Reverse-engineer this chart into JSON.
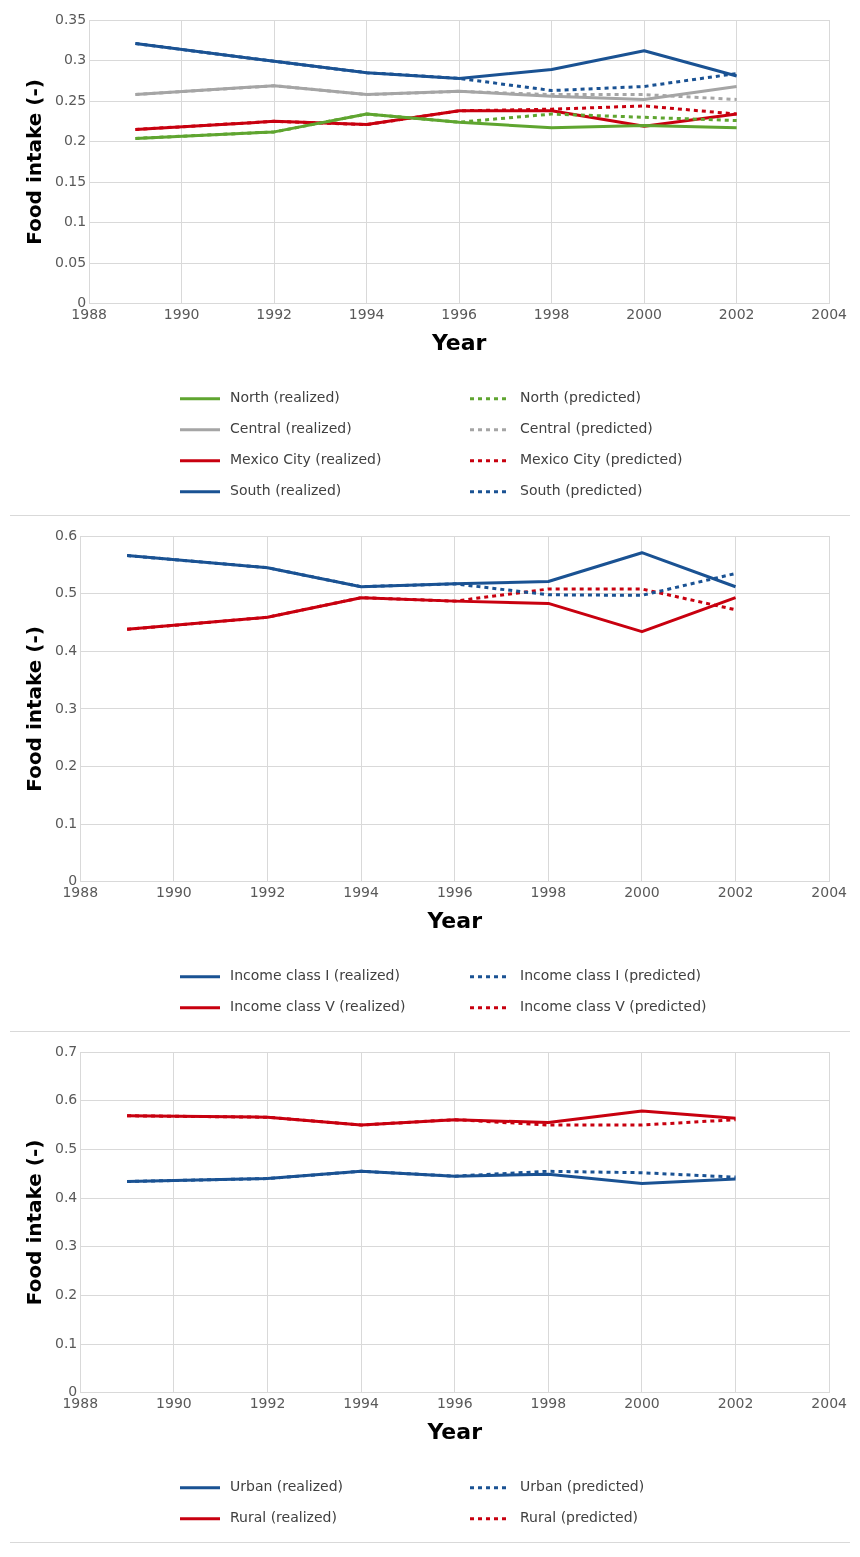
{
  "chart_data": [
    {
      "type": "line",
      "xlabel": "Year",
      "ylabel": "Food intake (-)",
      "x": [
        1989,
        1992,
        1994,
        1996,
        1998,
        2000,
        2002
      ],
      "xlim": [
        1988,
        2004
      ],
      "xticks": [
        1988,
        1990,
        1992,
        1994,
        1996,
        1998,
        2000,
        2002,
        2004
      ],
      "ylim": [
        0,
        0.35
      ],
      "yticks": [
        0,
        0.05,
        0.1,
        0.15,
        0.2,
        0.25,
        0.3,
        0.35
      ],
      "grid": true,
      "legend": "bottom",
      "marker": "none",
      "series": [
        {
          "name": "North (realized)",
          "color": "#5fa530",
          "line_style": "solid",
          "values": [
            0.204,
            0.212,
            0.234,
            0.224,
            0.217,
            0.22,
            0.217
          ]
        },
        {
          "name": "North (predicted)",
          "color": "#5fa530",
          "line_style": "dashed",
          "values": [
            0.204,
            0.212,
            0.234,
            0.224,
            0.234,
            0.23,
            0.226
          ]
        },
        {
          "name": "Central (realized)",
          "color": "#a5a5a5",
          "line_style": "solid",
          "values": [
            0.258,
            0.269,
            0.258,
            0.262,
            0.256,
            0.252,
            0.268
          ]
        },
        {
          "name": "Central (predicted)",
          "color": "#a5a5a5",
          "line_style": "dashed",
          "values": [
            0.258,
            0.269,
            0.258,
            0.262,
            0.258,
            0.258,
            0.252
          ]
        },
        {
          "name": "Mexico City (realized)",
          "color": "#c8000f",
          "line_style": "solid",
          "values": [
            0.215,
            0.225,
            0.221,
            0.238,
            0.238,
            0.219,
            0.234
          ]
        },
        {
          "name": "Mexico City (predicted)",
          "color": "#c8000f",
          "line_style": "dashed",
          "values": [
            0.215,
            0.225,
            0.221,
            0.238,
            0.24,
            0.244,
            0.234
          ]
        },
        {
          "name": "South (realized)",
          "color": "#1a5293",
          "line_style": "solid",
          "values": [
            0.321,
            0.299,
            0.285,
            0.278,
            0.289,
            0.312,
            0.281
          ]
        },
        {
          "name": "South (predicted)",
          "color": "#1a5293",
          "line_style": "dashed",
          "values": [
            0.321,
            0.299,
            0.285,
            0.278,
            0.263,
            0.268,
            0.284
          ]
        }
      ]
    },
    {
      "type": "line",
      "xlabel": "Year",
      "ylabel": "Food intake (-)",
      "x": [
        1989,
        1992,
        1994,
        1996,
        1998,
        2000,
        2002
      ],
      "xlim": [
        1988,
        2004
      ],
      "xticks": [
        1988,
        1990,
        1992,
        1994,
        1996,
        1998,
        2000,
        2002,
        2004
      ],
      "ylim": [
        0,
        0.6
      ],
      "yticks": [
        0,
        0.1,
        0.2,
        0.3,
        0.4,
        0.5,
        0.6
      ],
      "grid": true,
      "legend": "bottom",
      "marker": "none",
      "series": [
        {
          "name": "Income class I (realized)",
          "color": "#1a5293",
          "line_style": "solid",
          "values": [
            0.566,
            0.545,
            0.512,
            0.517,
            0.521,
            0.571,
            0.512
          ]
        },
        {
          "name": "Income class I (predicted)",
          "color": "#1a5293",
          "line_style": "dashed",
          "values": [
            0.566,
            0.545,
            0.512,
            0.517,
            0.498,
            0.497,
            0.535
          ]
        },
        {
          "name": "Income class V (realized)",
          "color": "#c8000f",
          "line_style": "solid",
          "values": [
            0.438,
            0.459,
            0.493,
            0.487,
            0.483,
            0.434,
            0.493
          ]
        },
        {
          "name": "Income class V (predicted)",
          "color": "#c8000f",
          "line_style": "dashed",
          "values": [
            0.438,
            0.459,
            0.493,
            0.487,
            0.508,
            0.508,
            0.472
          ]
        }
      ]
    },
    {
      "type": "line",
      "xlabel": "Year",
      "ylabel": "Food intake (-)",
      "x": [
        1989,
        1992,
        1994,
        1996,
        1998,
        2000,
        2002
      ],
      "xlim": [
        1988,
        2004
      ],
      "xticks": [
        1988,
        1990,
        1992,
        1994,
        1996,
        1998,
        2000,
        2002,
        2004
      ],
      "ylim": [
        0,
        0.7
      ],
      "yticks": [
        0,
        0.1,
        0.2,
        0.3,
        0.4,
        0.5,
        0.6,
        0.7
      ],
      "grid": true,
      "legend": "bottom",
      "marker": "none",
      "series": [
        {
          "name": "Urban (realized)",
          "color": "#1a5293",
          "line_style": "solid",
          "values": [
            0.434,
            0.44,
            0.455,
            0.445,
            0.449,
            0.43,
            0.439
          ]
        },
        {
          "name": "Urban (predicted)",
          "color": "#1a5293",
          "line_style": "dashed",
          "values": [
            0.434,
            0.44,
            0.455,
            0.445,
            0.455,
            0.452,
            0.443
          ]
        },
        {
          "name": "Rural (realized)",
          "color": "#c8000f",
          "line_style": "solid",
          "values": [
            0.569,
            0.566,
            0.55,
            0.561,
            0.555,
            0.579,
            0.564
          ]
        },
        {
          "name": "Rural (predicted)",
          "color": "#c8000f",
          "line_style": "dashed",
          "values": [
            0.569,
            0.566,
            0.55,
            0.561,
            0.55,
            0.55,
            0.561
          ]
        }
      ]
    }
  ]
}
